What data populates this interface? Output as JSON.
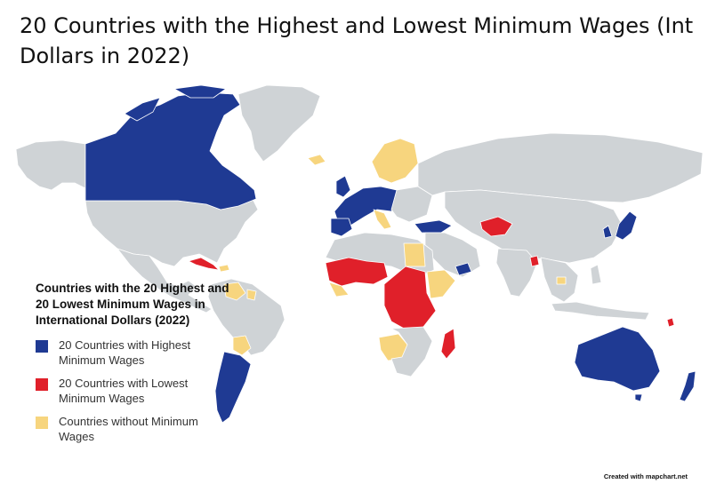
{
  "title": "20 Countries with the Highest and Lowest Minimum Wages (Int Dollars in 2022)",
  "legend": {
    "title": "Countries with the 20 Highest and 20 Lowest Minimum Wages in International Dollars (2022)",
    "items": [
      {
        "label": "20 Countries with Highest Minimum Wages",
        "color": "#1f3a93"
      },
      {
        "label": "20 Countries with Lowest Minimum Wages",
        "color": "#e0202a"
      },
      {
        "label": "Countries without Minimum Wages",
        "color": "#f7d57e"
      }
    ]
  },
  "colors": {
    "other_land": "#cfd3d6",
    "border": "#ffffff",
    "background": "#ffffff"
  },
  "credit": "Created with mapchart.net"
}
